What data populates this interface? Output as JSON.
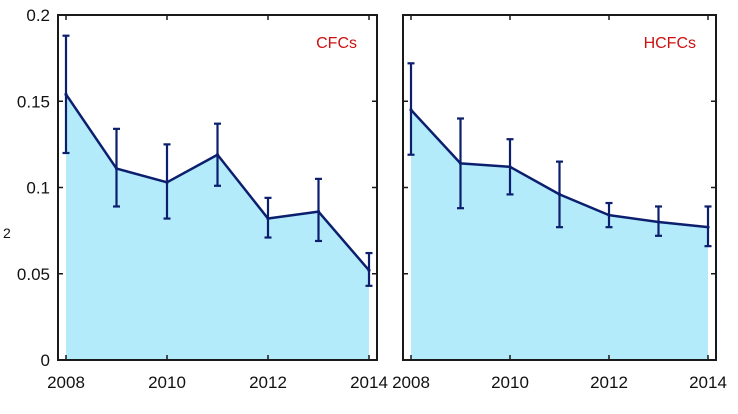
{
  "chart_data": [
    {
      "type": "area",
      "label": "CFCs",
      "ylabel": "2",
      "x": [
        2008,
        2009,
        2010,
        2011,
        2012,
        2013,
        2014
      ],
      "values": [
        0.154,
        0.111,
        0.103,
        0.119,
        0.082,
        0.086,
        0.052
      ],
      "err_low": [
        0.12,
        0.089,
        0.082,
        0.101,
        0.071,
        0.069,
        0.043
      ],
      "err_high": [
        0.188,
        0.134,
        0.125,
        0.137,
        0.094,
        0.105,
        0.062
      ],
      "xlim": [
        2008,
        2014
      ],
      "ylim": [
        0,
        0.2
      ],
      "xticks": [
        "2008",
        "2010",
        "2012",
        "2014"
      ],
      "yticks": [
        "0",
        "0.05",
        "0.1",
        "0.15",
        "0.2"
      ],
      "legend": "none",
      "grid": false
    },
    {
      "type": "area",
      "label": "HCFCs",
      "x": [
        2008,
        2009,
        2010,
        2011,
        2012,
        2013,
        2014
      ],
      "values": [
        0.145,
        0.114,
        0.112,
        0.096,
        0.084,
        0.08,
        0.077
      ],
      "err_low": [
        0.119,
        0.088,
        0.096,
        0.077,
        0.077,
        0.072,
        0.066
      ],
      "err_high": [
        0.172,
        0.14,
        0.128,
        0.115,
        0.091,
        0.089,
        0.089
      ],
      "xlim": [
        2008,
        2014
      ],
      "ylim": [
        0,
        0.2
      ],
      "xticks": [
        "2008",
        "2010",
        "2012",
        "2014"
      ],
      "yticks": [],
      "legend": "none",
      "grid": false
    }
  ],
  "colors": {
    "fill": "#b3ebfb",
    "line": "#0c1f6e",
    "label": "#cc1111",
    "axis": "#1a1a1a"
  }
}
